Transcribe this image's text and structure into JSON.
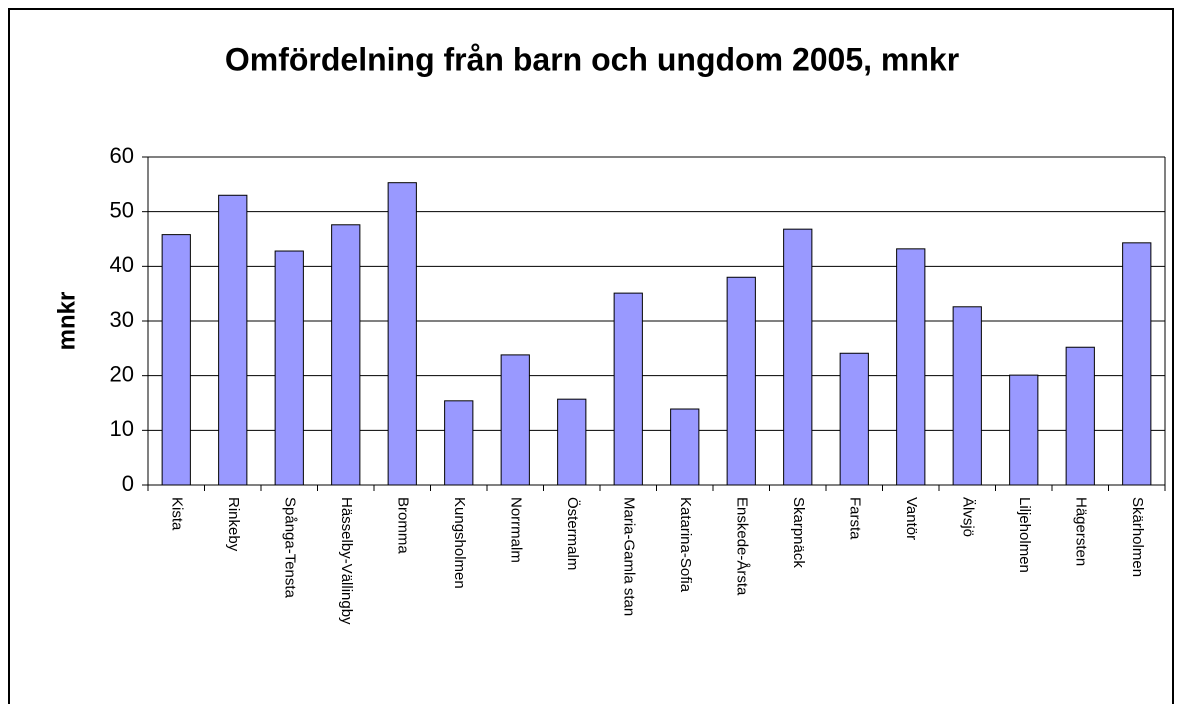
{
  "chart_data": {
    "type": "bar",
    "title": "Omfördelning från barn och ungdom 2005, mnkr",
    "y_label": "mnkr",
    "categories": [
      "Kista",
      "Rinkeby",
      "Spånga-Tensta",
      "Hässelby-Vällingby",
      "Bromma",
      "Kungsholmen",
      "Norrmalm",
      "Östermalm",
      "Maria-Gamla stan",
      "Katarina-Sofia",
      "Enskede-Årsta",
      "Skarpnäck",
      "Farsta",
      "Vantör",
      "Älvsjö",
      "Liljeholmen",
      "Hägersten",
      "Skärholmen"
    ],
    "values": [
      45.8,
      53,
      42.8,
      47.6,
      55.3,
      15.4,
      23.8,
      15.7,
      35.1,
      13.9,
      38,
      46.8,
      24.1,
      43.2,
      32.6,
      20.1,
      25.2,
      44.3
    ],
    "color": "#9999ff",
    "ylim": [
      0,
      60
    ],
    "yticks": [
      0,
      10,
      20,
      30,
      40,
      50,
      60
    ],
    "grid": true
  }
}
